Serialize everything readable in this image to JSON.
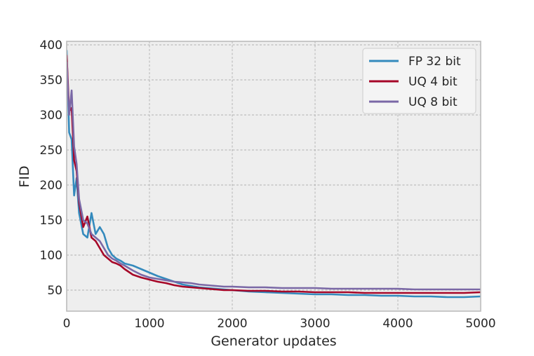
{
  "chart_data": {
    "type": "line",
    "title": "",
    "xlabel": "Generator updates",
    "ylabel": "FID",
    "xlim": [
      0,
      5000
    ],
    "ylim": [
      20,
      405
    ],
    "xticks": [
      0,
      1000,
      2000,
      3000,
      4000,
      5000
    ],
    "yticks": [
      50,
      100,
      150,
      200,
      250,
      300,
      350,
      400
    ],
    "grid": true,
    "legend_position": "top-right",
    "series": [
      {
        "name": "FP 32 bit",
        "color": "#348abd",
        "x": [
          0,
          30,
          60,
          90,
          120,
          150,
          200,
          250,
          300,
          350,
          400,
          450,
          500,
          550,
          600,
          650,
          700,
          800,
          900,
          1000,
          1100,
          1200,
          1300,
          1400,
          1500,
          1600,
          1700,
          1800,
          1900,
          2000,
          2200,
          2400,
          2600,
          2800,
          3000,
          3200,
          3400,
          3600,
          3800,
          4000,
          4200,
          4400,
          4600,
          4800,
          5000
        ],
        "y": [
          392,
          275,
          265,
          185,
          210,
          160,
          130,
          125,
          160,
          130,
          140,
          130,
          110,
          100,
          95,
          92,
          88,
          85,
          80,
          75,
          70,
          66,
          62,
          58,
          56,
          54,
          53,
          52,
          51,
          50,
          48,
          47,
          46,
          45,
          44,
          44,
          43,
          43,
          42,
          42,
          41,
          41,
          40,
          40,
          41
        ]
      },
      {
        "name": "UQ 4 bit",
        "color": "#a60628",
        "x": [
          0,
          30,
          60,
          90,
          120,
          150,
          200,
          250,
          300,
          350,
          400,
          450,
          500,
          550,
          600,
          650,
          700,
          800,
          900,
          1000,
          1100,
          1200,
          1300,
          1400,
          1500,
          1600,
          1700,
          1800,
          1900,
          2000,
          2200,
          2400,
          2600,
          2800,
          3000,
          3200,
          3400,
          3600,
          3800,
          4000,
          4200,
          4400,
          4600,
          4800,
          5000
        ],
        "y": [
          385,
          305,
          310,
          235,
          220,
          175,
          140,
          155,
          125,
          120,
          110,
          100,
          95,
          90,
          88,
          85,
          80,
          72,
          68,
          65,
          62,
          60,
          57,
          55,
          54,
          53,
          52,
          51,
          50,
          50,
          49,
          49,
          48,
          48,
          47,
          47,
          47,
          46,
          46,
          46,
          46,
          46,
          46,
          46,
          47
        ]
      },
      {
        "name": "UQ 8 bit",
        "color": "#7a68a6",
        "x": [
          0,
          30,
          60,
          90,
          120,
          150,
          200,
          250,
          300,
          350,
          400,
          450,
          500,
          550,
          600,
          650,
          700,
          800,
          900,
          1000,
          1100,
          1200,
          1300,
          1400,
          1500,
          1600,
          1700,
          1800,
          1900,
          2000,
          2200,
          2400,
          2600,
          2800,
          3000,
          3200,
          3400,
          3600,
          3800,
          4000,
          4200,
          4400,
          4600,
          4800,
          5000
        ],
        "y": [
          375,
          300,
          335,
          255,
          230,
          180,
          150,
          145,
          130,
          125,
          120,
          110,
          100,
          95,
          92,
          88,
          85,
          78,
          72,
          68,
          66,
          64,
          62,
          61,
          60,
          58,
          57,
          56,
          55,
          55,
          54,
          54,
          53,
          53,
          53,
          52,
          52,
          52,
          52,
          52,
          51,
          51,
          51,
          51,
          51
        ]
      }
    ]
  }
}
